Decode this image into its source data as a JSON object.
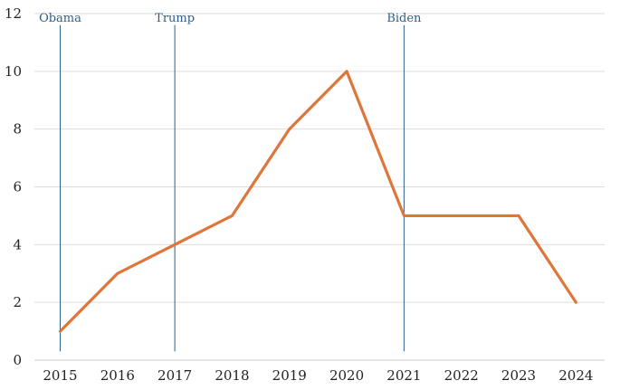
{
  "chart_data": {
    "type": "line",
    "title": "",
    "xlabel": "",
    "ylabel": "",
    "x": [
      2015,
      2016,
      2017,
      2018,
      2019,
      2020,
      2021,
      2022,
      2023,
      2024
    ],
    "series": [
      {
        "values": [
          1,
          3,
          4,
          5,
          8,
          10,
          5,
          5,
          5,
          2
        ],
        "color": "#E0753A"
      }
    ],
    "xlim": [
      2014.55,
      2024.5
    ],
    "ylim": [
      0,
      12
    ],
    "yticks": [
      0,
      2,
      4,
      6,
      8,
      10,
      12
    ],
    "grid": "horizontal",
    "annotations": [
      {
        "x": 2015,
        "label": "Obama",
        "color": "#2B5F8E"
      },
      {
        "x": 2017,
        "label": "Trump",
        "color": "#2B5F8E"
      },
      {
        "x": 2021,
        "label": "Biden",
        "color": "#2B5F8E"
      }
    ]
  }
}
